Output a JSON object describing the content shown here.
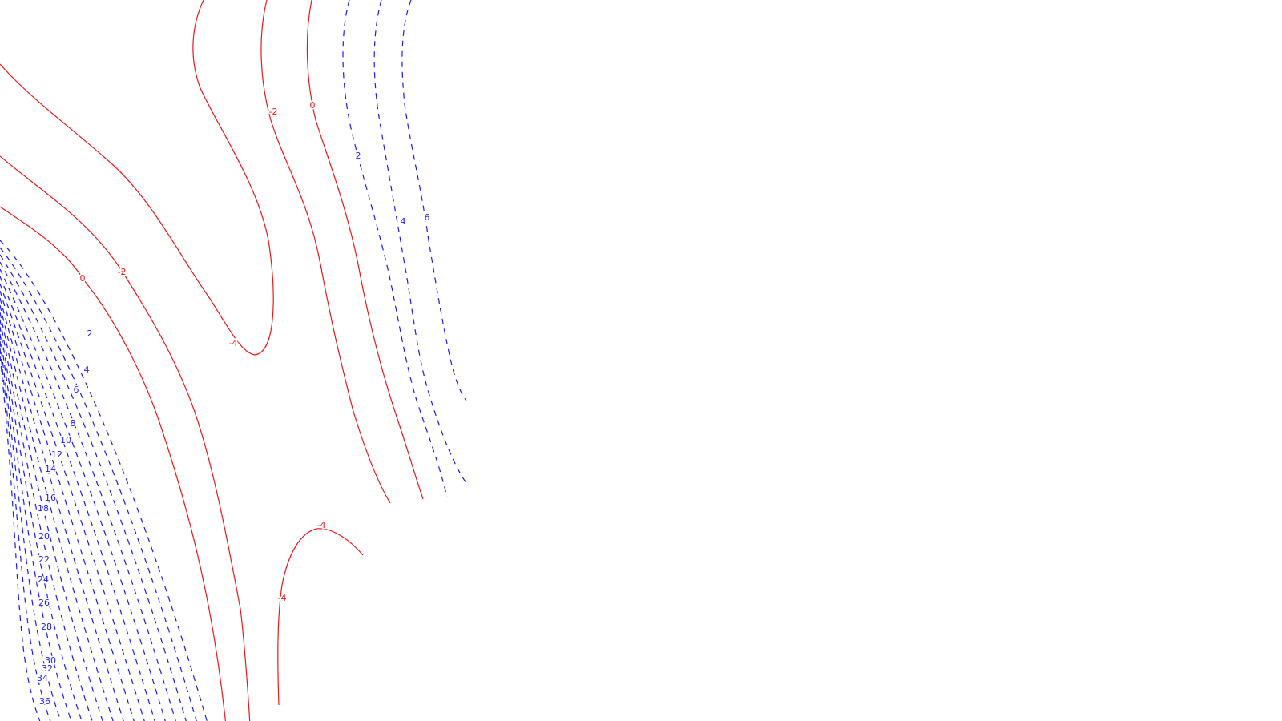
{
  "chart_data": {
    "type": "contour",
    "title": "",
    "xlabel": "",
    "ylabel": "",
    "grid": false,
    "legend": "none",
    "colors": {
      "negative": "#e8191b",
      "positive": "#1a1af0"
    },
    "line_styles": {
      "negative": "solid",
      "positive": "dashed"
    },
    "levels_shown": [
      -4,
      -2,
      0,
      2,
      4,
      6,
      8,
      10,
      12,
      14,
      16,
      18,
      20,
      22,
      24,
      26,
      28,
      30,
      32,
      34,
      36
    ],
    "contour_labels": [
      {
        "text": "-4"
      },
      {
        "text": "-4"
      },
      {
        "text": "-4"
      },
      {
        "text": "-2"
      },
      {
        "text": "-2"
      },
      {
        "text": "0"
      },
      {
        "text": "0"
      },
      {
        "text": "2"
      },
      {
        "text": "2"
      },
      {
        "text": "4"
      },
      {
        "text": "4"
      },
      {
        "text": "6"
      },
      {
        "text": "6"
      },
      {
        "text": "8"
      },
      {
        "text": "10"
      },
      {
        "text": "12"
      },
      {
        "text": "14"
      },
      {
        "text": "16"
      },
      {
        "text": "18"
      },
      {
        "text": "20"
      },
      {
        "text": "22"
      },
      {
        "text": "24"
      },
      {
        "text": "26"
      },
      {
        "text": "28"
      },
      {
        "text": "30"
      },
      {
        "text": "32"
      },
      {
        "text": "34"
      },
      {
        "text": "36"
      }
    ]
  }
}
